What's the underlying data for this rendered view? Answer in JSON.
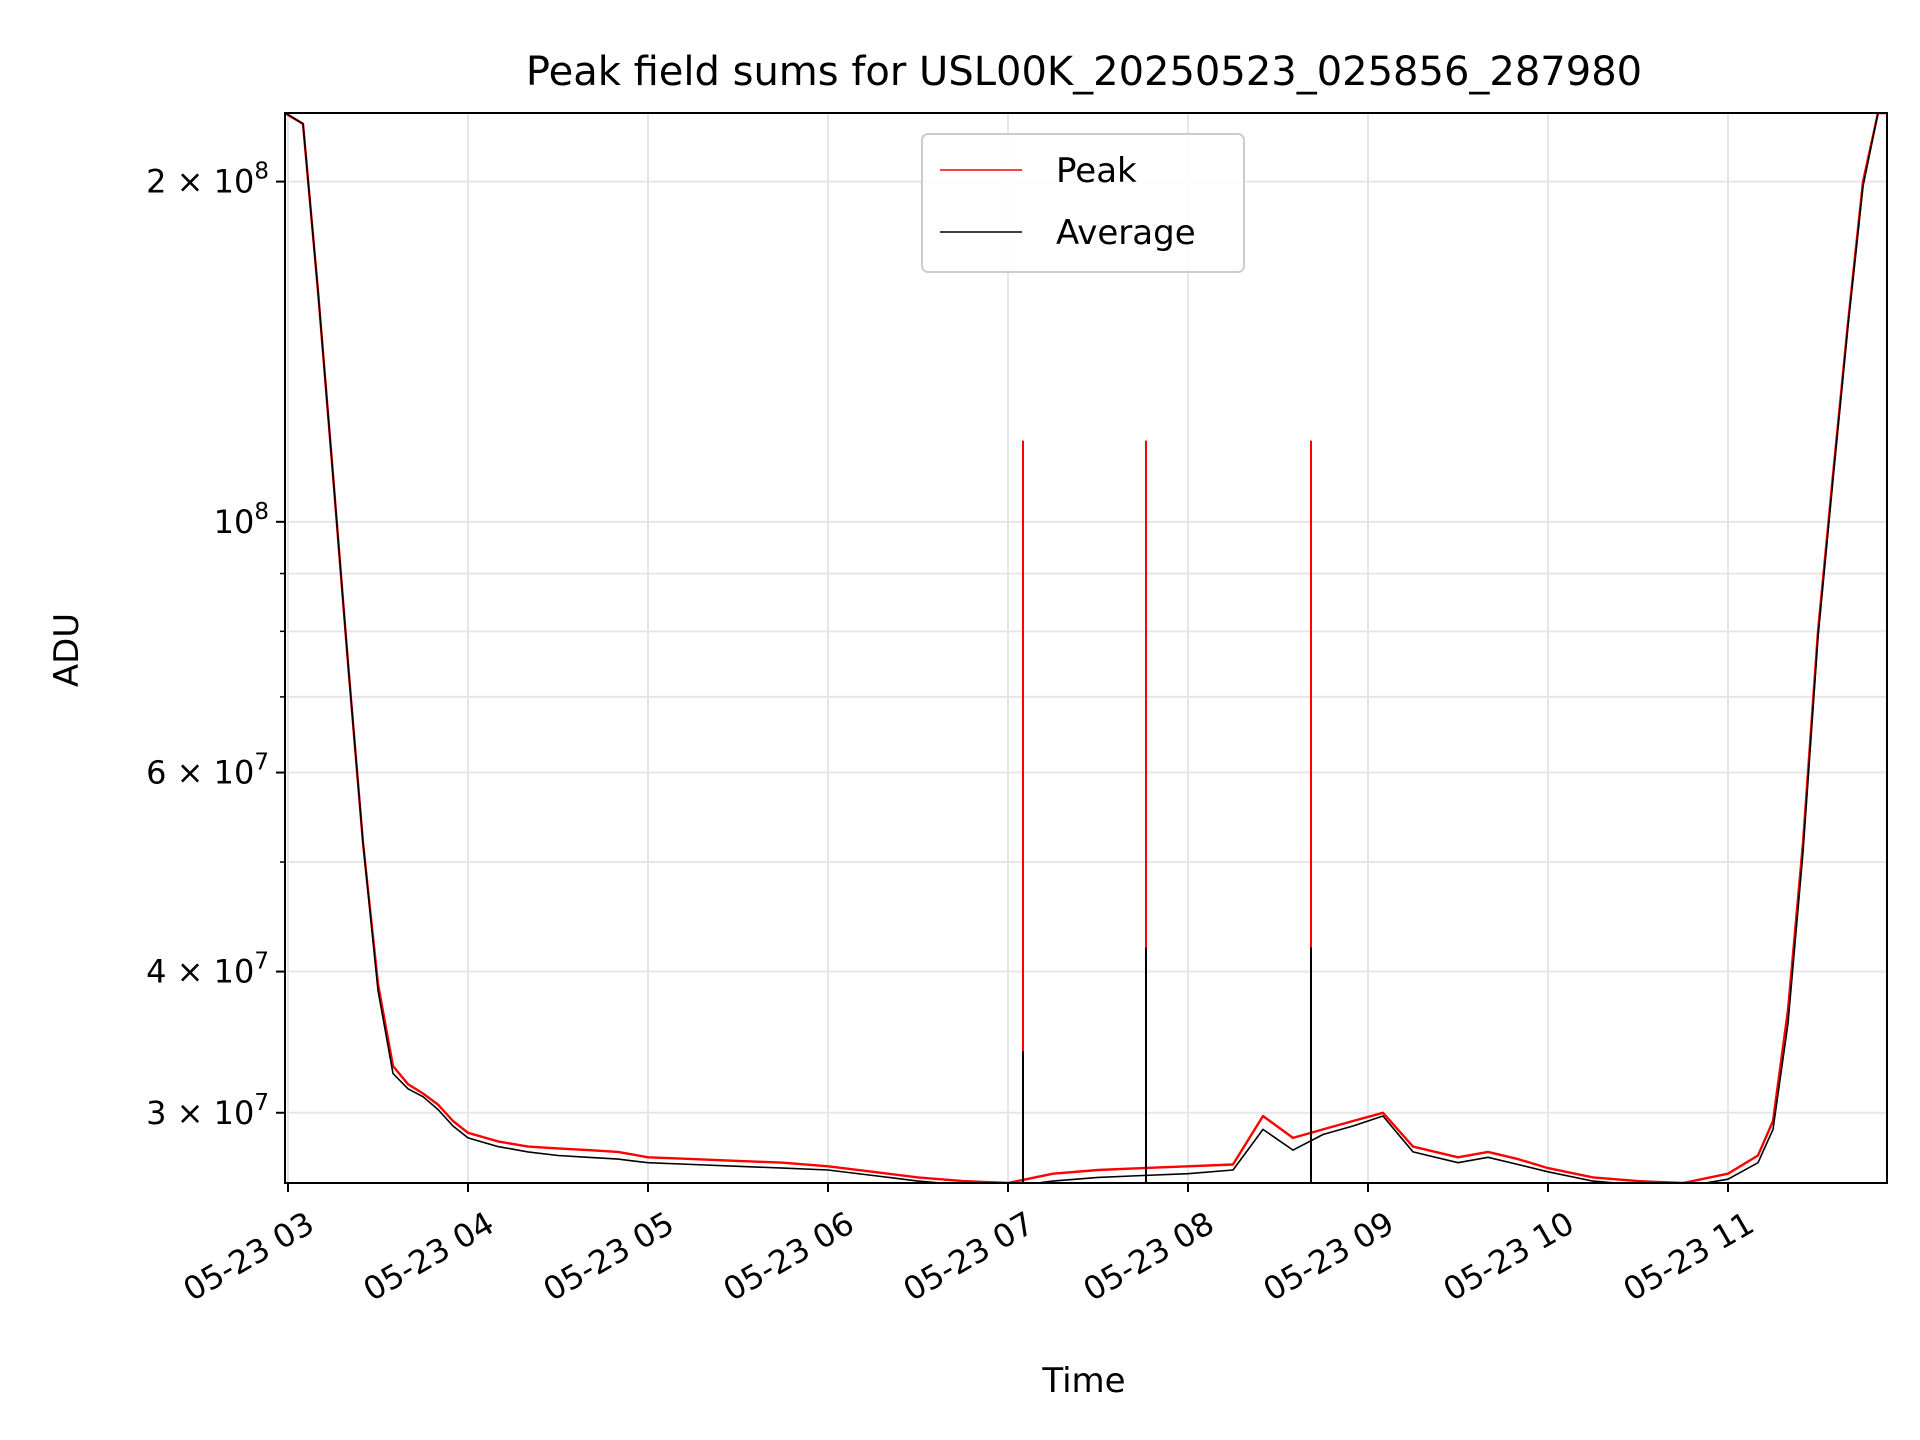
{
  "chart_data": {
    "type": "line",
    "title": "Peak field sums for USL00K_20250523_025856_287980",
    "xlabel": "Time",
    "ylabel": "ADU",
    "yscale": "log",
    "xlim": [
      "2025-05-23 02:59",
      "2025-05-23 11:53"
    ],
    "ylim": [
      26000000,
      230000000
    ],
    "grid": true,
    "legend_position": "top-center",
    "x_tick_labels": [
      "05-23 03",
      "05-23 04",
      "05-23 05",
      "05-23 06",
      "05-23 07",
      "05-23 08",
      "05-23 09",
      "05-23 10",
      "05-23 11"
    ],
    "y_tick_labels": [
      {
        "value": 30000000,
        "mantissa": "3",
        "exponent": "7"
      },
      {
        "value": 40000000,
        "mantissa": "4",
        "exponent": "7"
      },
      {
        "value": 60000000,
        "mantissa": "6",
        "exponent": "7"
      },
      {
        "value": 100000000,
        "mantissa": "",
        "exponent": "8"
      },
      {
        "value": 200000000,
        "mantissa": "2",
        "exponent": "8"
      }
    ],
    "series": [
      {
        "name": "Peak",
        "color": "#ff0000",
        "x": [
          "02:59",
          "03:05",
          "03:10",
          "03:15",
          "03:20",
          "03:25",
          "03:30",
          "03:35",
          "03:40",
          "03:45",
          "03:50",
          "03:55",
          "04:00",
          "04:10",
          "04:20",
          "04:30",
          "04:40",
          "04:50",
          "05:00",
          "05:15",
          "05:30",
          "05:45",
          "06:00",
          "06:15",
          "06:30",
          "06:45",
          "07:00",
          "07:15",
          "07:30",
          "07:45",
          "08:00",
          "08:15",
          "08:25",
          "08:35",
          "08:45",
          "08:55",
          "09:05",
          "09:15",
          "09:30",
          "09:40",
          "09:50",
          "10:00",
          "10:15",
          "10:30",
          "10:45",
          "11:00",
          "11:10",
          "11:15",
          "11:20",
          "11:25",
          "11:30",
          "11:35",
          "11:40",
          "11:45",
          "11:50",
          "11:53"
        ],
        "y": [
          230000000,
          225000000,
          160000000,
          110000000,
          75000000,
          52000000,
          39000000,
          33000000,
          31800000,
          31200000,
          30500000,
          29500000,
          28800000,
          28300000,
          28000000,
          27900000,
          27800000,
          27700000,
          27400000,
          27300000,
          27200000,
          27100000,
          26900000,
          26600000,
          26300000,
          26100000,
          26000000,
          26500000,
          26700000,
          26800000,
          26900000,
          27000000,
          29800000,
          28500000,
          29000000,
          29500000,
          30000000,
          28000000,
          27400000,
          27700000,
          27300000,
          26800000,
          26300000,
          26100000,
          26000000,
          26500000,
          27500000,
          29500000,
          37000000,
          52000000,
          80000000,
          110000000,
          150000000,
          200000000,
          230000000,
          230000000
        ],
        "spikes": [
          {
            "x": "07:05",
            "y": 118000000
          },
          {
            "x": "07:46",
            "y": 118000000
          },
          {
            "x": "08:41",
            "y": 118000000
          }
        ]
      },
      {
        "name": "Average",
        "color": "#000000",
        "x": [
          "02:59",
          "03:05",
          "03:10",
          "03:15",
          "03:20",
          "03:25",
          "03:30",
          "03:35",
          "03:40",
          "03:45",
          "03:50",
          "03:55",
          "04:00",
          "04:10",
          "04:20",
          "04:30",
          "04:40",
          "04:50",
          "05:00",
          "05:15",
          "05:30",
          "05:45",
          "06:00",
          "06:15",
          "06:30",
          "06:45",
          "07:00",
          "07:15",
          "07:30",
          "07:45",
          "08:00",
          "08:15",
          "08:25",
          "08:35",
          "08:45",
          "08:55",
          "09:05",
          "09:15",
          "09:30",
          "09:40",
          "09:50",
          "10:00",
          "10:15",
          "10:30",
          "10:45",
          "11:00",
          "11:10",
          "11:15",
          "11:20",
          "11:25",
          "11:30",
          "11:35",
          "11:40",
          "11:45",
          "11:50",
          "11:53"
        ],
        "y": [
          230000000,
          225000000,
          160000000,
          110000000,
          75000000,
          52000000,
          38500000,
          32500000,
          31500000,
          31000000,
          30200000,
          29200000,
          28500000,
          28000000,
          27700000,
          27500000,
          27400000,
          27300000,
          27100000,
          27000000,
          26900000,
          26800000,
          26700000,
          26400000,
          26100000,
          25900000,
          25800000,
          26100000,
          26300000,
          26400000,
          26500000,
          26700000,
          29000000,
          27800000,
          28700000,
          29200000,
          29800000,
          27700000,
          27100000,
          27400000,
          27000000,
          26600000,
          26100000,
          25900000,
          25800000,
          26200000,
          27100000,
          29000000,
          36000000,
          51000000,
          79000000,
          109000000,
          149000000,
          198000000,
          230000000,
          230000000
        ],
        "spikes": [
          {
            "x": "07:05",
            "y": 34000000
          },
          {
            "x": "07:46",
            "y": 42000000
          },
          {
            "x": "08:41",
            "y": 42000000
          }
        ]
      }
    ]
  }
}
